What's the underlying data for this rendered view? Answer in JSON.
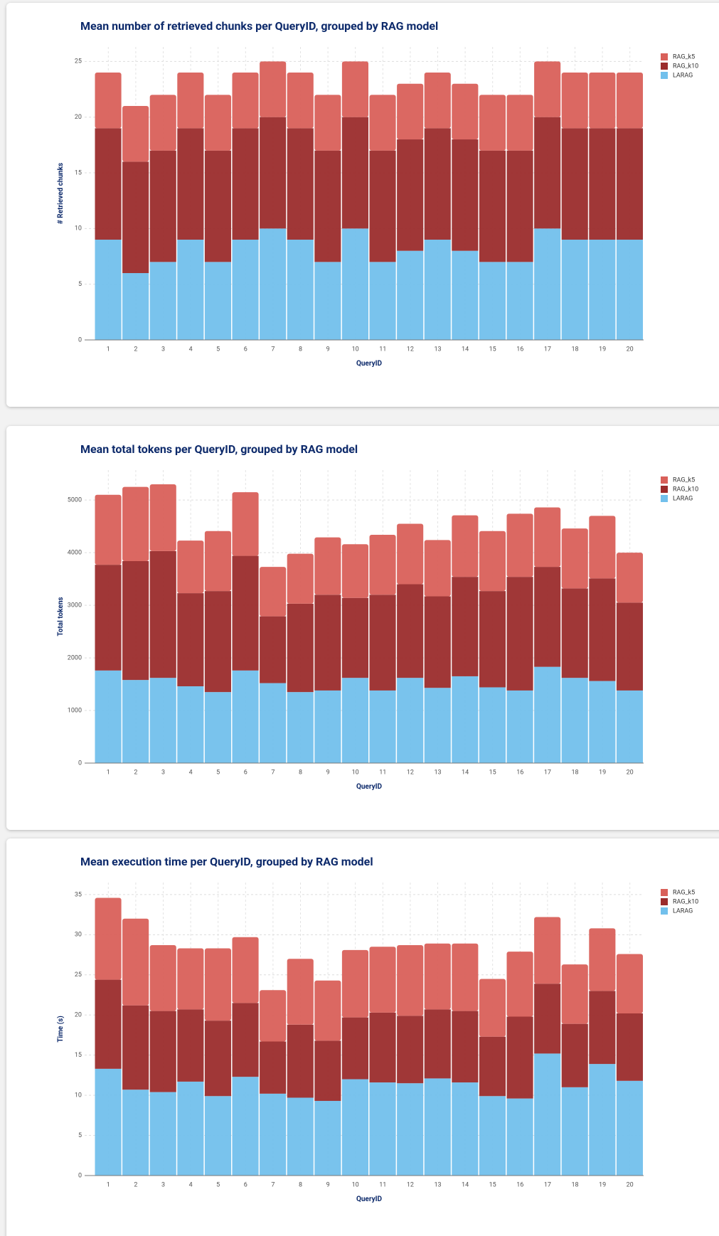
{
  "chart_data": [
    {
      "type": "bar",
      "stacked": true,
      "title": "Mean number of retrieved chunks per QueryID, grouped by RAG model",
      "xlabel": "QueryID",
      "ylabel": "# Retrieved chunks",
      "categories": [
        "1",
        "2",
        "3",
        "4",
        "5",
        "6",
        "7",
        "8",
        "9",
        "10",
        "11",
        "12",
        "13",
        "14",
        "15",
        "16",
        "17",
        "18",
        "19",
        "20"
      ],
      "series": [
        {
          "name": "LARAG",
          "color": "#72c0ec",
          "values": [
            9,
            6,
            7,
            9,
            7,
            9,
            10,
            9,
            7,
            10,
            7,
            8,
            9,
            8,
            7,
            7,
            10,
            9,
            9,
            9
          ]
        },
        {
          "name": "RAG_k10",
          "color": "#9b2c2c",
          "values": [
            10,
            10,
            10,
            10,
            10,
            10,
            10,
            10,
            10,
            10,
            10,
            10,
            10,
            10,
            10,
            10,
            10,
            10,
            10,
            10
          ]
        },
        {
          "name": "RAG_k5",
          "color": "#d9605a",
          "values": [
            5,
            5,
            5,
            5,
            5,
            5,
            5,
            5,
            5,
            5,
            5,
            5,
            5,
            5,
            5,
            5,
            5,
            5,
            5,
            5
          ]
        }
      ],
      "ylim": [
        0,
        26.3
      ],
      "yticks": [
        0,
        5,
        10,
        15,
        20,
        25
      ],
      "grid": true
    },
    {
      "type": "bar",
      "stacked": true,
      "title": "Mean total tokens per QueryID, grouped by RAG model",
      "xlabel": "QueryID",
      "ylabel": "Total tokens",
      "categories": [
        "1",
        "2",
        "3",
        "4",
        "5",
        "6",
        "7",
        "8",
        "9",
        "10",
        "11",
        "12",
        "13",
        "14",
        "15",
        "16",
        "17",
        "18",
        "19",
        "20"
      ],
      "series": [
        {
          "name": "LARAG",
          "color": "#72c0ec",
          "values": [
            1760,
            1580,
            1620,
            1460,
            1350,
            1760,
            1520,
            1350,
            1380,
            1620,
            1380,
            1620,
            1430,
            1650,
            1440,
            1380,
            1830,
            1620,
            1560,
            1380
          ]
        },
        {
          "name": "RAG_k10",
          "color": "#9b2c2c",
          "values": [
            2010,
            2260,
            2410,
            1770,
            1920,
            2180,
            1270,
            1680,
            1820,
            1520,
            1820,
            1780,
            1740,
            1890,
            1830,
            2160,
            1900,
            1700,
            1950,
            1670
          ]
        },
        {
          "name": "RAG_k5",
          "color": "#d9605a",
          "values": [
            1330,
            1410,
            1270,
            1000,
            1140,
            1210,
            940,
            950,
            1090,
            1020,
            1140,
            1150,
            1070,
            1170,
            1140,
            1200,
            1130,
            1140,
            1190,
            950
          ]
        }
      ],
      "ylim": [
        0,
        5570
      ],
      "yticks": [
        0,
        1000,
        2000,
        3000,
        4000,
        5000
      ],
      "grid": true
    },
    {
      "type": "bar",
      "stacked": true,
      "title": "Mean execution time per QueryID, grouped by RAG model",
      "xlabel": "QueryID",
      "ylabel": "Time (s)",
      "categories": [
        "1",
        "2",
        "3",
        "4",
        "5",
        "6",
        "7",
        "8",
        "9",
        "10",
        "11",
        "12",
        "13",
        "14",
        "15",
        "16",
        "17",
        "18",
        "19",
        "20"
      ],
      "series": [
        {
          "name": "LARAG",
          "color": "#72c0ec",
          "values": [
            13.3,
            10.7,
            10.4,
            11.7,
            9.9,
            12.3,
            10.2,
            9.7,
            9.3,
            12.0,
            11.6,
            11.5,
            12.1,
            11.6,
            9.9,
            9.6,
            15.2,
            11.0,
            13.9,
            11.8
          ]
        },
        {
          "name": "RAG_k10",
          "color": "#9b2c2c",
          "values": [
            11.1,
            10.5,
            10.1,
            9.0,
            9.4,
            9.2,
            6.5,
            9.1,
            7.5,
            7.7,
            8.7,
            8.4,
            8.6,
            8.9,
            7.4,
            10.2,
            8.7,
            7.9,
            9.1,
            8.4
          ]
        },
        {
          "name": "RAG_k5",
          "color": "#d9605a",
          "values": [
            10.2,
            10.8,
            8.2,
            7.6,
            9.0,
            8.2,
            6.4,
            8.2,
            7.5,
            8.4,
            8.2,
            8.8,
            8.2,
            8.4,
            7.2,
            8.1,
            8.3,
            7.4,
            7.8,
            7.4
          ]
        }
      ],
      "ylim": [
        0,
        36.5
      ],
      "yticks": [
        0,
        5,
        10,
        15,
        20,
        25,
        30,
        35
      ],
      "grid": true
    }
  ]
}
